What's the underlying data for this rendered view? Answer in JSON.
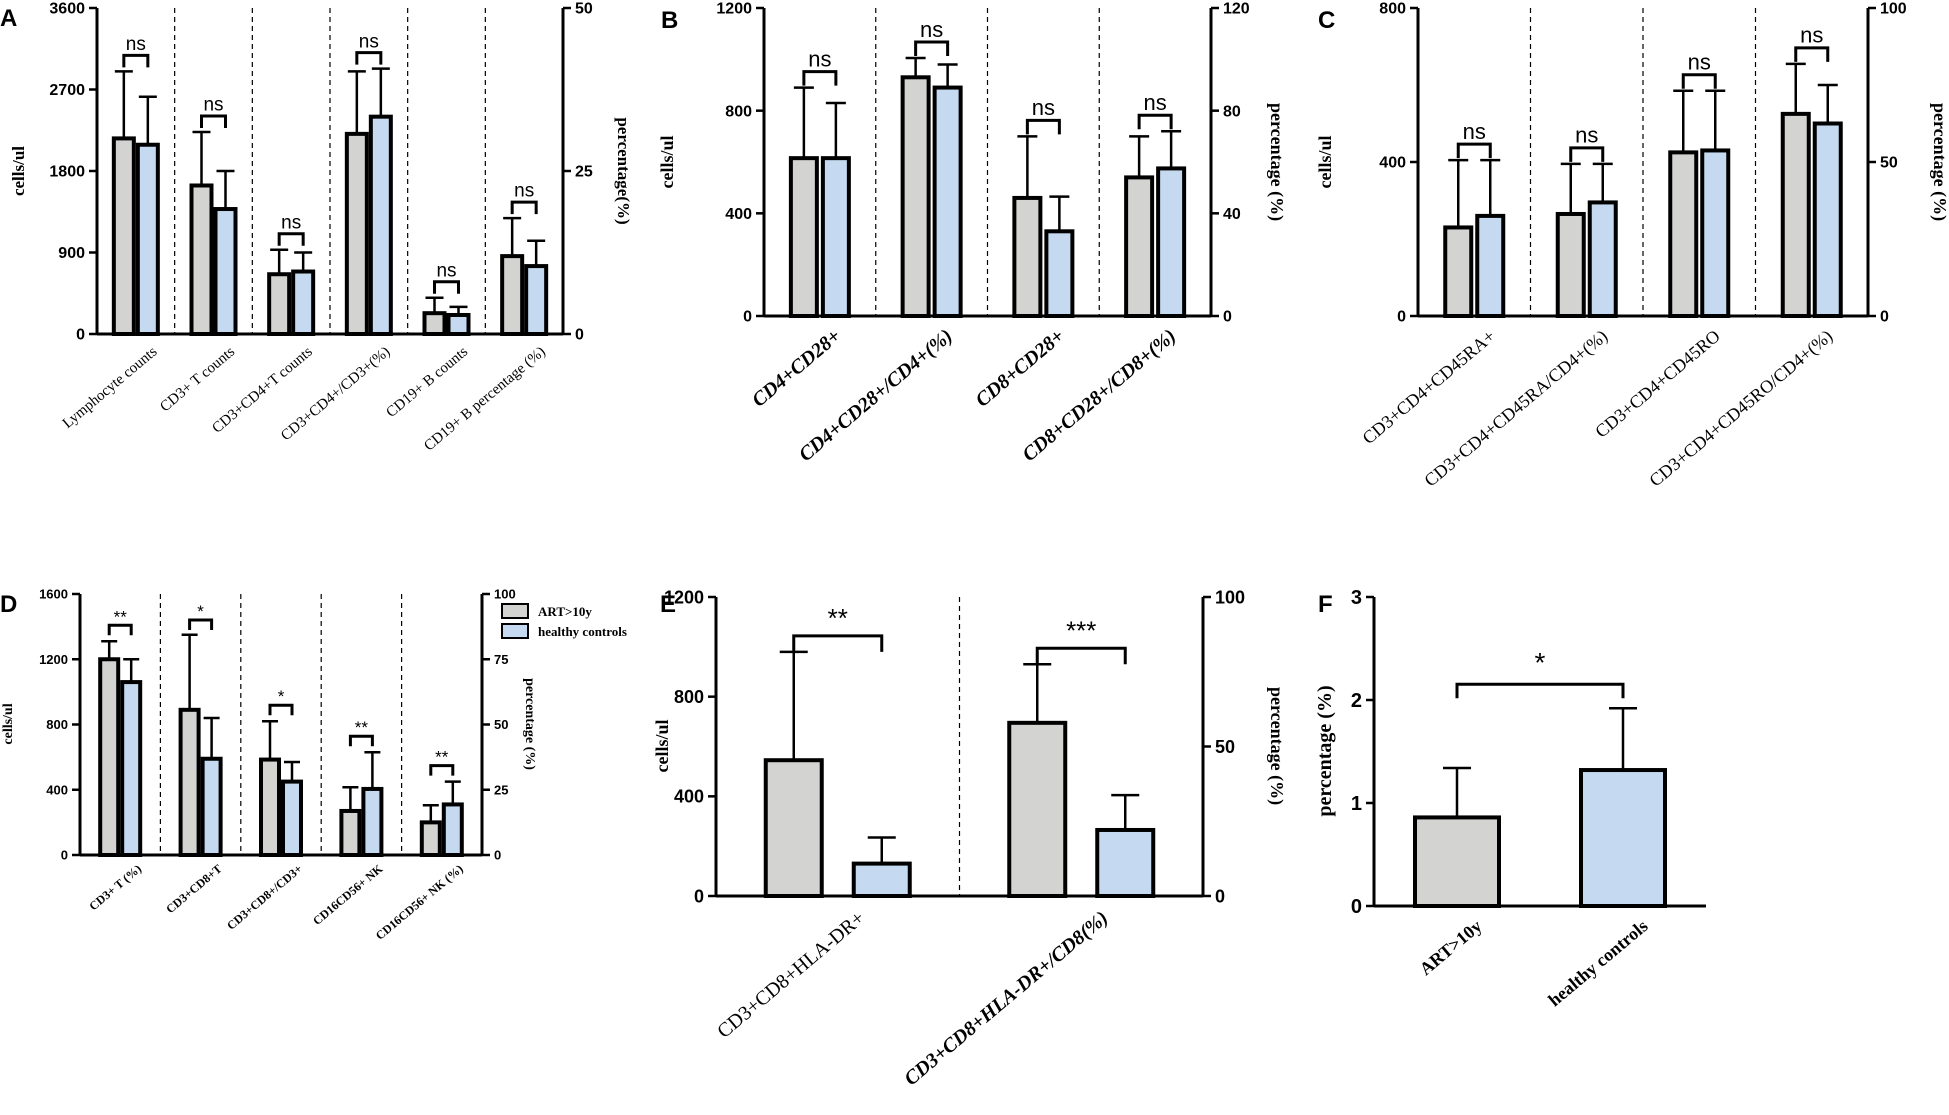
{
  "colors": {
    "ART>10y": "#d3d3d1",
    "healthy controls": "#c5daf0"
  },
  "legend": [
    "ART>10y",
    "healthy controls"
  ],
  "chart_data": [
    {
      "panel": "A",
      "type": "bar",
      "ylabel": "cells/ul",
      "y2label": "percentage(%)",
      "ylim": [
        0,
        3600
      ],
      "yticks": [
        "0",
        "900",
        "1800",
        "2700",
        "3600"
      ],
      "y2ticks": [
        "0",
        "25",
        "50"
      ],
      "categories": [
        "Lymphocyte counts",
        "CD3+ T counts",
        "CD3+CD4+T counts",
        "CD3+CD4+/CD3+(%)",
        "CD19+ B counts",
        "CD19+ B percentage (%)"
      ],
      "italic_categories": [],
      "series": [
        {
          "name": "ART>10y",
          "values": [
            2160,
            1640,
            660,
            2210,
            230,
            860
          ],
          "errors": [
            2900,
            2230,
            930,
            2900,
            400,
            1280
          ]
        },
        {
          "name": "healthy controls",
          "values": [
            2090,
            1380,
            690,
            2400,
            210,
            750
          ],
          "errors": [
            2620,
            1800,
            900,
            2930,
            300,
            1030
          ]
        }
      ],
      "significance": [
        "ns",
        "ns",
        "ns",
        "ns",
        "ns",
        "ns"
      ]
    },
    {
      "panel": "B",
      "type": "bar",
      "ylabel": "cells/ul",
      "y2label": "percentage (%)",
      "ylim": [
        0,
        1200
      ],
      "yticks": [
        "0",
        "400",
        "800",
        "1200"
      ],
      "y2ticks": [
        "0",
        "40",
        "80",
        "120"
      ],
      "categories": [
        "CD4+CD28+",
        "CD4+CD28+/CD4+(%)",
        "CD8+CD28+",
        "CD8+CD28+/CD8+(%)"
      ],
      "italic_categories": [
        0,
        1,
        2,
        3
      ],
      "series": [
        {
          "name": "ART>10y",
          "values": [
            615,
            930,
            460,
            540
          ],
          "errors": [
            890,
            1005,
            700,
            700
          ]
        },
        {
          "name": "healthy controls",
          "values": [
            615,
            890,
            330,
            575
          ],
          "errors": [
            830,
            980,
            465,
            720
          ]
        }
      ],
      "significance": [
        "ns",
        "ns",
        "ns",
        "ns"
      ]
    },
    {
      "panel": "C",
      "type": "bar",
      "ylabel": "cells/ul",
      "y2label": "percentage (%)",
      "ylim": [
        0,
        800
      ],
      "yticks": [
        "0",
        "400",
        "800"
      ],
      "y2ticks": [
        "0",
        "50",
        "100"
      ],
      "categories": [
        "CD3+CD4+CD45RA+",
        "CD3+CD4+CD45RA/CD4+(%)",
        "CD3+CD4+CD45RO",
        "CD3+CD4+CD45RO/CD4+(%)"
      ],
      "italic_categories": [],
      "series": [
        {
          "name": "ART>10y",
          "values": [
            230,
            265,
            425,
            525
          ],
          "errors": [
            405,
            395,
            585,
            655
          ]
        },
        {
          "name": "healthy controls",
          "values": [
            260,
            295,
            430,
            500
          ],
          "errors": [
            405,
            395,
            585,
            600
          ]
        }
      ],
      "significance": [
        "ns",
        "ns",
        "ns",
        "ns"
      ]
    },
    {
      "panel": "D",
      "type": "bar",
      "ylabel": "cells/ul",
      "y2label": "percentage (%)",
      "ylim": [
        0,
        1600
      ],
      "yticks": [
        "0",
        "400",
        "800",
        "1200",
        "1600"
      ],
      "y2ticks": [
        "0",
        "25",
        "50",
        "75",
        "100"
      ],
      "categories": [
        "CD3+ T (%)",
        "CD3+CD8+T",
        "CD3+CD8+/CD3+",
        "CD16CD56+ NK",
        "CD16CD56+ NK (%)"
      ],
      "italic_categories": [],
      "series": [
        {
          "name": "ART>10y",
          "values": [
            1200,
            890,
            585,
            270,
            200
          ],
          "errors": [
            1310,
            1350,
            820,
            415,
            305
          ]
        },
        {
          "name": "healthy controls",
          "values": [
            1060,
            590,
            450,
            405,
            310
          ],
          "errors": [
            1200,
            840,
            570,
            630,
            450
          ]
        }
      ],
      "significance": [
        "**",
        "*",
        "*",
        "**",
        "**"
      ]
    },
    {
      "panel": "E",
      "type": "bar",
      "ylabel": "cells/ul",
      "y2label": "percentage (%)",
      "ylim": [
        0,
        1200
      ],
      "yticks": [
        "0",
        "400",
        "800",
        "1200"
      ],
      "y2ticks": [
        "0",
        "50",
        "100"
      ],
      "categories": [
        "CD3+CD8+HLA-DR+",
        "CD3+CD8+HLA-DR+/CD8(%)"
      ],
      "italic_categories": [
        1
      ],
      "series": [
        {
          "name": "ART>10y",
          "values": [
            545,
            695
          ],
          "errors": [
            980,
            930
          ]
        },
        {
          "name": "healthy controls",
          "values": [
            130,
            265
          ],
          "errors": [
            235,
            405
          ]
        }
      ],
      "significance": [
        "**",
        "***"
      ]
    },
    {
      "panel": "F",
      "type": "bar",
      "ylabel": "percentage (%)",
      "ylim": [
        0,
        3
      ],
      "yticks": [
        "0",
        "1",
        "2",
        "3"
      ],
      "categories": [
        "ART>10y",
        "healthy controls"
      ],
      "series": [
        {
          "name": "ART>10y / healthy controls",
          "values": [
            0.86,
            1.32
          ],
          "errors": [
            1.34,
            1.92
          ]
        }
      ],
      "significance": [
        "*"
      ]
    }
  ]
}
